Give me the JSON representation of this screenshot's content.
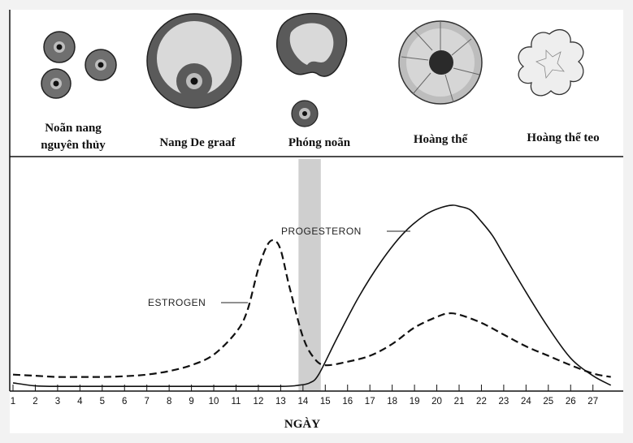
{
  "colors": {
    "background": "#f2f2f2",
    "panel": "#ffffff",
    "ink": "#111111",
    "ovulation_band": "#cfcfcf"
  },
  "stages": [
    {
      "lines": [
        "Noãn nang",
        "nguyên thủy"
      ],
      "icon": "primordial-follicles-icon"
    },
    {
      "lines": [
        "Nang De graaf"
      ],
      "icon": "graafian-follicle-icon"
    },
    {
      "lines": [
        "Phóng noãn"
      ],
      "icon": "ovulation-icon"
    },
    {
      "lines": [
        "Hoàng thể"
      ],
      "icon": "corpus-luteum-icon"
    },
    {
      "lines": [
        "Hoàng thể teo"
      ],
      "icon": "corpus-albicans-icon"
    }
  ],
  "chart_data": {
    "type": "line",
    "xlabel": "NGÀY",
    "ylabel": "",
    "x": [
      1,
      2,
      3,
      4,
      5,
      6,
      7,
      8,
      9,
      10,
      11,
      12,
      13,
      14,
      15,
      16,
      17,
      18,
      19,
      20,
      21,
      22,
      23,
      24,
      25,
      26,
      27
    ],
    "xlim": [
      1,
      27.8
    ],
    "ylim": [
      0,
      100
    ],
    "grid": false,
    "highlight_band": {
      "x": [
        13.8,
        14.8
      ],
      "label": "Phóng noãn"
    },
    "series": [
      {
        "name": "ESTROGEN",
        "style": "dashed",
        "points": [
          [
            1,
            7
          ],
          [
            2,
            6.5
          ],
          [
            3,
            6
          ],
          [
            4,
            6
          ],
          [
            5,
            6
          ],
          [
            6,
            6.3
          ],
          [
            7,
            7
          ],
          [
            8,
            8.5
          ],
          [
            9,
            11
          ],
          [
            10,
            15.5
          ],
          [
            11,
            25
          ],
          [
            11.5,
            34
          ],
          [
            12,
            52
          ],
          [
            12.4,
            62
          ],
          [
            12.7,
            64
          ],
          [
            13,
            60
          ],
          [
            13.4,
            44
          ],
          [
            14,
            23
          ],
          [
            14.5,
            14
          ],
          [
            15,
            11
          ],
          [
            16,
            12.5
          ],
          [
            17,
            15
          ],
          [
            18,
            20
          ],
          [
            19,
            27
          ],
          [
            20,
            31.5
          ],
          [
            20.5,
            33
          ],
          [
            21,
            32.5
          ],
          [
            22,
            29
          ],
          [
            23,
            24
          ],
          [
            24,
            19
          ],
          [
            25,
            15
          ],
          [
            26,
            11
          ],
          [
            27,
            7.5
          ],
          [
            27.8,
            6
          ]
        ]
      },
      {
        "name": "PROGESTERONE",
        "style": "solid",
        "points": [
          [
            1,
            3.5
          ],
          [
            2,
            2.2
          ],
          [
            3,
            2
          ],
          [
            6,
            2
          ],
          [
            10,
            2
          ],
          [
            13,
            2
          ],
          [
            13.8,
            2.5
          ],
          [
            14.3,
            3.5
          ],
          [
            14.7,
            7
          ],
          [
            15.5,
            22
          ],
          [
            16.5,
            40
          ],
          [
            17.5,
            55
          ],
          [
            18.5,
            67
          ],
          [
            19.5,
            75
          ],
          [
            20.2,
            78
          ],
          [
            20.7,
            79
          ],
          [
            21,
            78.5
          ],
          [
            21.5,
            77
          ],
          [
            22,
            72
          ],
          [
            22.5,
            66
          ],
          [
            23,
            58
          ],
          [
            24,
            42
          ],
          [
            25,
            27
          ],
          [
            26,
            14
          ],
          [
            27,
            6.5
          ],
          [
            27.8,
            2.5
          ]
        ]
      }
    ],
    "series_labels": [
      "ESTROGEN",
      "PROGESTERON"
    ]
  }
}
